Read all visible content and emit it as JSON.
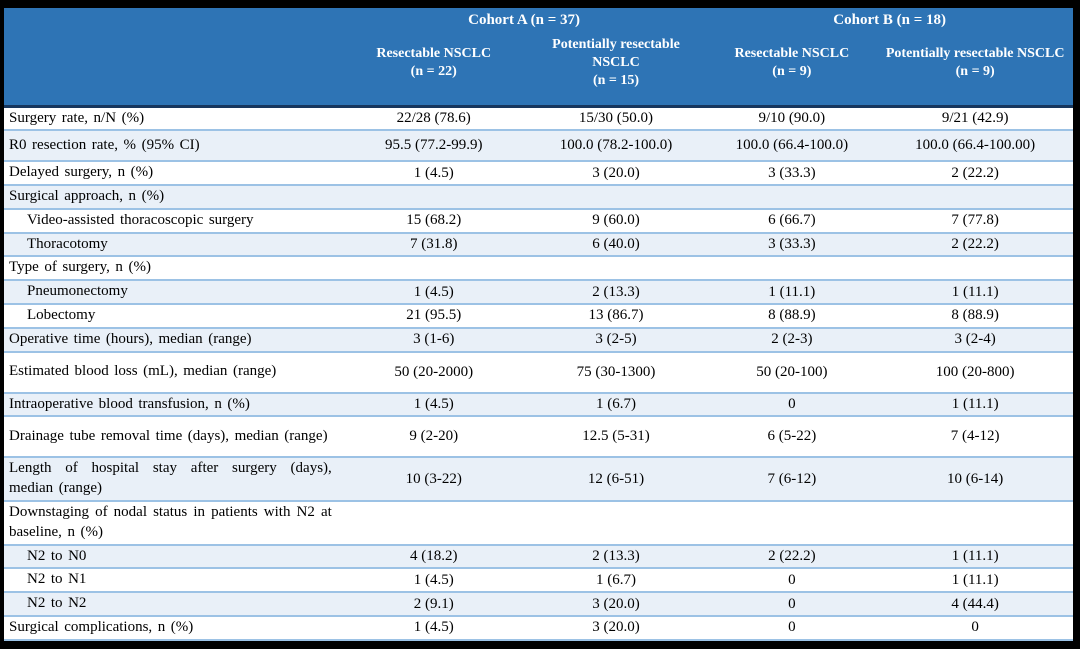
{
  "table": {
    "cohorts": [
      {
        "label": "Cohort A (n = 37)"
      },
      {
        "label": "Cohort B (n = 18)"
      }
    ],
    "columns": [
      {
        "name": "Resectable NSCLC",
        "n": "(n = 22)"
      },
      {
        "name": "Potentially resectable NSCLC",
        "n": "(n = 15)"
      },
      {
        "name": "Resectable NSCLC",
        "n": "(n = 9)"
      },
      {
        "name": "Potentially resectable NSCLC",
        "n": "(n = 9)"
      }
    ],
    "rows": [
      {
        "label": "Surgery rate, n/N (%)",
        "indent": false,
        "values": [
          "22/28 (78.6)",
          "15/30 (50.0)",
          "9/10 (90.0)",
          "9/21 (42.9)"
        ]
      },
      {
        "label": "R0 resection rate, % (95% CI)",
        "indent": false,
        "size": "t1",
        "values": [
          "95.5 (77.2-99.9)",
          "100.0 (78.2-100.0)",
          "100.0 (66.4-100.0)",
          "100.0 (66.4-100.00)"
        ]
      },
      {
        "label": "Delayed surgery, n (%)",
        "indent": false,
        "values": [
          "1 (4.5)",
          "3 (20.0)",
          "3 (33.3)",
          "2 (22.2)"
        ]
      },
      {
        "label": "Surgical approach, n (%)",
        "indent": false,
        "values": [
          "",
          "",
          "",
          ""
        ]
      },
      {
        "label": "Video-assisted thoracoscopic surgery",
        "indent": true,
        "values": [
          "15 (68.2)",
          "9 (60.0)",
          "6 (66.7)",
          "7 (77.8)"
        ]
      },
      {
        "label": "Thoracotomy",
        "indent": true,
        "values": [
          "7 (31.8)",
          "6 (40.0)",
          "3 (33.3)",
          "2 (22.2)"
        ]
      },
      {
        "label": "Type of surgery, n (%)",
        "indent": false,
        "values": [
          "",
          "",
          "",
          ""
        ]
      },
      {
        "label": "Pneumonectomy",
        "indent": true,
        "values": [
          "1 (4.5)",
          "2 (13.3)",
          "1 (11.1)",
          "1 (11.1)"
        ]
      },
      {
        "label": "Lobectomy",
        "indent": true,
        "values": [
          "21 (95.5)",
          "13 (86.7)",
          "8 (88.9)",
          "8 (88.9)"
        ]
      },
      {
        "label": "Operative time (hours), median (range)",
        "indent": false,
        "values": [
          "3 (1-6)",
          "3 (2-5)",
          "2 (2-3)",
          "3 (2-4)"
        ]
      },
      {
        "label": "Estimated blood loss (mL), median (range)",
        "indent": false,
        "size": "t2",
        "values": [
          "50 (20-2000)",
          "75 (30-1300)",
          "50 (20-100)",
          "100 (20-800)"
        ]
      },
      {
        "label": "Intraoperative blood transfusion, n (%)",
        "indent": false,
        "values": [
          "1 (4.5)",
          "1 (6.7)",
          "0",
          "1 (11.1)"
        ]
      },
      {
        "label": "Drainage tube removal time (days), median (range)",
        "indent": false,
        "size": "t2",
        "values": [
          "9 (2-20)",
          "12.5 (5-31)",
          "6 (5-22)",
          "7 (4-12)"
        ]
      },
      {
        "label": "Length of hospital stay after surgery (days), median (range)",
        "indent": false,
        "size": "t2",
        "values": [
          "10 (3-22)",
          "12 (6-51)",
          "7 (6-12)",
          "10 (6-14)"
        ]
      },
      {
        "label": "Downstaging of nodal status in patients with N2 at baseline, n (%)",
        "indent": false,
        "size": "t2",
        "values": [
          "",
          "",
          "",
          ""
        ]
      },
      {
        "label": "N2 to N0",
        "indent": true,
        "values": [
          "4 (18.2)",
          "2 (13.3)",
          "2 (22.2)",
          "1 (11.1)"
        ]
      },
      {
        "label": "N2 to N1",
        "indent": true,
        "values": [
          "1 (4.5)",
          "1 (6.7)",
          "0",
          "1 (11.1)"
        ]
      },
      {
        "label": "N2 to N2",
        "indent": true,
        "values": [
          "2 (9.1)",
          "3 (20.0)",
          "0",
          "4 (44.4)"
        ]
      },
      {
        "label": "Surgical complications, n (%)",
        "indent": false,
        "values": [
          "1 (4.5)",
          "3 (20.0)",
          "0",
          "0"
        ]
      }
    ]
  },
  "colors": {
    "header_bg": "#2E74B5",
    "header_text": "#FFFFFF",
    "header_divider": "#17365D",
    "row_alt_bg": "#E9F0F8",
    "row_border": "#9CC2E5",
    "body_text": "#000000",
    "frame": "#000000"
  }
}
